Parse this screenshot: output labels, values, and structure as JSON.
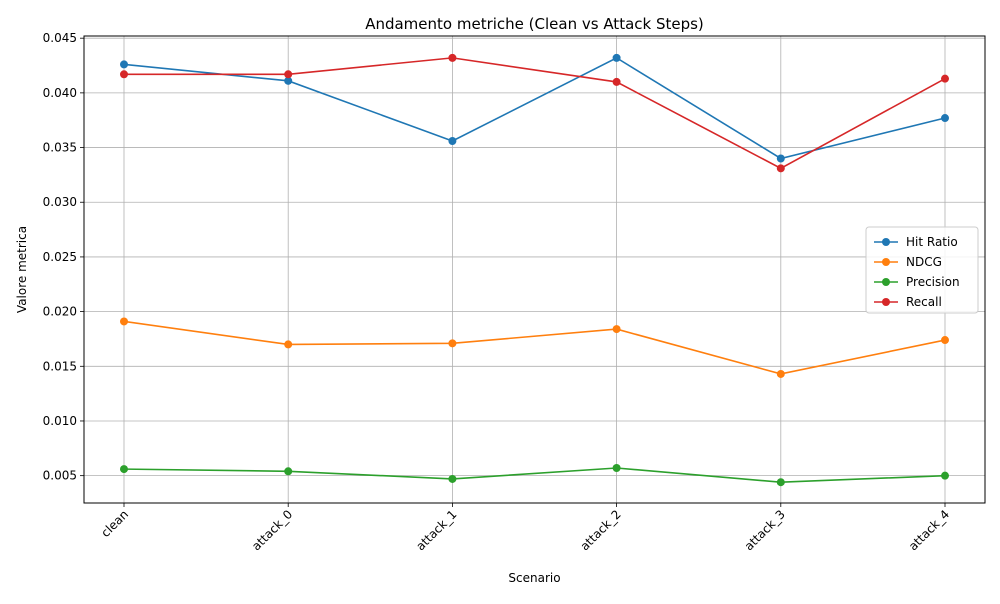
{
  "chart_data": {
    "type": "line",
    "title": "Andamento metriche (Clean vs Attack Steps)",
    "xlabel": "Scenario",
    "ylabel": "Valore metrica",
    "categories": [
      "clean",
      "attack_0",
      "attack_1",
      "attack_2",
      "attack_3",
      "attack_4"
    ],
    "ylim": [
      0.0025,
      0.0452
    ],
    "yticks": [
      "0.005",
      "0.010",
      "0.015",
      "0.020",
      "0.025",
      "0.030",
      "0.035",
      "0.040",
      "0.045"
    ],
    "grid": true,
    "legend_position": "center-right",
    "series": [
      {
        "name": "Hit Ratio",
        "color": "#1f77b4",
        "values": [
          0.0426,
          0.0411,
          0.0356,
          0.0432,
          0.034,
          0.0377
        ]
      },
      {
        "name": "NDCG",
        "color": "#ff7f0e",
        "values": [
          0.0191,
          0.017,
          0.0171,
          0.0184,
          0.0143,
          0.0174
        ]
      },
      {
        "name": "Precision",
        "color": "#2ca02c",
        "values": [
          0.0056,
          0.0054,
          0.0047,
          0.0057,
          0.0044,
          0.005
        ]
      },
      {
        "name": "Recall",
        "color": "#d62728",
        "values": [
          0.0417,
          0.0417,
          0.0432,
          0.041,
          0.0331,
          0.0413
        ]
      }
    ]
  }
}
